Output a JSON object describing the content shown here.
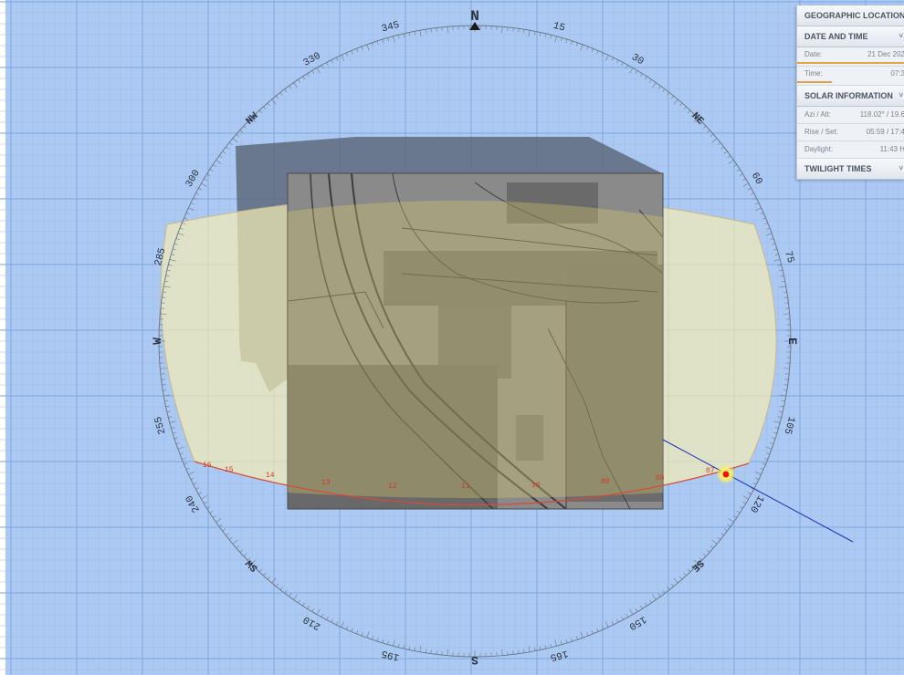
{
  "compass": {
    "north": "N",
    "east": "E",
    "south": "S",
    "west": "W",
    "northeast": "NE",
    "northwest": "NW",
    "southeast": "SE",
    "southwest": "SW",
    "bearings": [
      "15",
      "30",
      "60",
      "75",
      "105",
      "120",
      "150",
      "165",
      "195",
      "210",
      "240",
      "255",
      "285",
      "300",
      "330",
      "345"
    ]
  },
  "sunpath": {
    "hour_labels": [
      "16",
      "15",
      "14",
      "13",
      "12",
      "11",
      "10",
      "09",
      "08",
      "07"
    ],
    "sun_position": {
      "azimuth_deg": 118.02,
      "altitude_deg": 19.6
    }
  },
  "panel": {
    "geo_title": "GEOGRAPHIC LOCATION",
    "dt_title": "DATE AND TIME",
    "date_label": "Date:",
    "date_value": "21 Dec 202",
    "time_label": "Time:",
    "time_value": "07:3",
    "solar_title": "SOLAR INFORMATION",
    "azi_label": "Azi / Alt:",
    "azi_value": "118.02° / 19.6",
    "rise_label": "Rise / Set:",
    "rise_value": "05:59 / 17:4",
    "daylight_label": "Daylight:",
    "daylight_value": "11:43 H",
    "twilight_title": "TWILIGHT TIMES",
    "expand_glyph": "˅"
  },
  "colors": {
    "sky": "#abc9f2",
    "band_fill": "#f2ecb4",
    "sun": "#e8141a",
    "panel_accent": "#e0a24c"
  }
}
